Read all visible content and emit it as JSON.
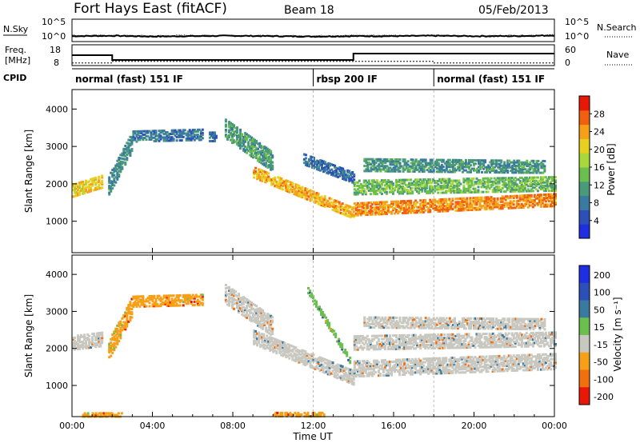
{
  "header": {
    "station": "Fort Hays East (fitACF)",
    "beam": "Beam 18",
    "date": "05/Feb/2013"
  },
  "chart_data": [
    {
      "type": "line",
      "panel": "noise",
      "left_label": "N.Sky",
      "right_label": "N.Search",
      "left_ticks": [
        "10^5",
        "10^0"
      ],
      "right_ticks": [
        "10^5",
        "10^0"
      ],
      "x": [
        0,
        2,
        4,
        6,
        8,
        10,
        12,
        14,
        16,
        18,
        20,
        22,
        24
      ],
      "sky": [
        1.0,
        1.1,
        0.9,
        1.0,
        1.1,
        1.0,
        0.9,
        1.0,
        1.0,
        1.1,
        1.0,
        1.0,
        1.2
      ],
      "search": [
        1.2,
        1.2,
        1.1,
        1.2,
        1.2,
        1.1,
        1.1,
        1.2,
        1.2,
        1.2,
        1.1,
        1.2,
        1.3
      ]
    },
    {
      "type": "line",
      "panel": "frequency",
      "left_label_1": "Freq.",
      "left_label_2": "[MHz]",
      "right_label": "Nave",
      "left_ticks": [
        "18",
        "8"
      ],
      "right_ticks": [
        "60",
        "0"
      ],
      "freq_segments": [
        [
          0,
          2,
          13.5
        ],
        [
          2,
          14,
          10.5
        ],
        [
          14,
          24,
          14.5
        ]
      ],
      "nave_segments": [
        [
          0,
          2,
          8.6
        ],
        [
          2,
          18,
          9.6
        ],
        [
          18,
          24,
          8.6
        ]
      ]
    },
    {
      "type": "table",
      "panel": "cpid",
      "label": "CPID",
      "segments": [
        {
          "start": 0,
          "label": "normal (fast) 151 IF"
        },
        {
          "start": 12,
          "label": "rbsp 200 IF"
        },
        {
          "start": 18,
          "label": "normal (fast) 151 IF"
        }
      ]
    },
    {
      "type": "heatmap",
      "panel": "power",
      "ylabel": "Slant Range [km]",
      "yticks": [
        1000,
        2000,
        3000,
        4000
      ],
      "ylim": [
        180,
        4500
      ],
      "xlim": [
        0,
        24
      ],
      "colorbar_label": "Power [dB]",
      "colorbar_ticks": [
        4,
        8,
        12,
        16,
        20,
        24,
        28
      ],
      "colorbar_range": [
        0,
        32
      ],
      "colorbar_colors": [
        "#1f2ee0",
        "#2c4fb8",
        "#3b7aa0",
        "#4a9a7a",
        "#6cbf4f",
        "#a8d83a",
        "#e8d020",
        "#f5a018",
        "#f06010",
        "#e81808"
      ],
      "bands": [
        {
          "t0": 0.0,
          "t1": 1.5,
          "c0": 1850,
          "c1": 2100,
          "w": 320,
          "v": 22
        },
        {
          "t0": 1.8,
          "t1": 3.0,
          "c0": 2000,
          "c1": 3200,
          "w": 500,
          "v": 9
        },
        {
          "t0": 3.0,
          "t1": 6.5,
          "c0": 3300,
          "c1": 3350,
          "w": 280,
          "v": 7
        },
        {
          "t0": 6.8,
          "t1": 7.2,
          "c0": 3300,
          "c1": 3300,
          "w": 250,
          "v": 6
        },
        {
          "t0": 7.6,
          "t1": 10.0,
          "c0": 3500,
          "c1": 2600,
          "w": 500,
          "v": 11
        },
        {
          "t0": 9.0,
          "t1": 14.0,
          "c0": 2350,
          "c1": 1250,
          "w": 300,
          "v": 24
        },
        {
          "t0": 11.5,
          "t1": 14.0,
          "c0": 2700,
          "c1": 2200,
          "w": 300,
          "v": 6
        },
        {
          "t0": 14.0,
          "t1": 24.0,
          "c0": 1350,
          "c1": 1600,
          "w": 320,
          "v": 26
        },
        {
          "t0": 14.0,
          "t1": 24.0,
          "c0": 1950,
          "c1": 2050,
          "w": 400,
          "v": 14
        },
        {
          "t0": 14.5,
          "t1": 23.5,
          "c0": 2550,
          "c1": 2500,
          "w": 350,
          "v": 10
        }
      ]
    },
    {
      "type": "heatmap",
      "panel": "velocity",
      "ylabel": "Slant Range [km]",
      "xlabel": "Time UT",
      "yticks": [
        1000,
        2000,
        3000,
        4000
      ],
      "ylim": [
        180,
        4500
      ],
      "xlim": [
        0,
        24
      ],
      "xticks": [
        "00:00",
        "04:00",
        "08:00",
        "12:00",
        "16:00",
        "20:00",
        "00:00"
      ],
      "colorbar_label": "Velocity [m s⁻¹]",
      "colorbar_ticks": [
        "200",
        "100",
        "50",
        "15",
        "-15",
        "-50",
        "-100",
        "-200"
      ],
      "colorbar_colors": [
        "#1f2ee0",
        "#2c4fb8",
        "#3b7aa0",
        "#6cbf4f",
        "#c8c8c0",
        "#f5a018",
        "#f07010",
        "#e81808"
      ],
      "bands": [
        {
          "t0": 0.0,
          "t1": 1.5,
          "c0": 2200,
          "c1": 2300,
          "w": 400,
          "v": 4
        },
        {
          "t0": 1.8,
          "t1": 3.0,
          "c0": 2000,
          "c1": 3200,
          "w": 500,
          "v": 5
        },
        {
          "t0": 3.0,
          "t1": 6.5,
          "c0": 3300,
          "c1": 3350,
          "w": 280,
          "v": 5
        },
        {
          "t0": 7.6,
          "t1": 10.0,
          "c0": 3500,
          "c1": 2600,
          "w": 500,
          "v": 4
        },
        {
          "t0": 9.0,
          "t1": 14.0,
          "c0": 2350,
          "c1": 1250,
          "w": 400,
          "v": 4
        },
        {
          "t0": 11.7,
          "t1": 13.8,
          "c0": 3600,
          "c1": 1700,
          "w": 150,
          "v": 3
        },
        {
          "t0": 14.0,
          "t1": 24.0,
          "c0": 1500,
          "c1": 1700,
          "w": 450,
          "v": 4
        },
        {
          "t0": 14.0,
          "t1": 24.0,
          "c0": 2200,
          "c1": 2300,
          "w": 400,
          "v": 4
        },
        {
          "t0": 14.5,
          "t1": 23.5,
          "c0": 2750,
          "c1": 2700,
          "w": 300,
          "v": 4
        },
        {
          "t0": 10.0,
          "t1": 12.5,
          "c0": 260,
          "c1": 260,
          "w": 120,
          "v": 5
        },
        {
          "t0": 0.5,
          "t1": 2.5,
          "c0": 240,
          "c1": 240,
          "w": 100,
          "v": 5
        }
      ]
    }
  ]
}
